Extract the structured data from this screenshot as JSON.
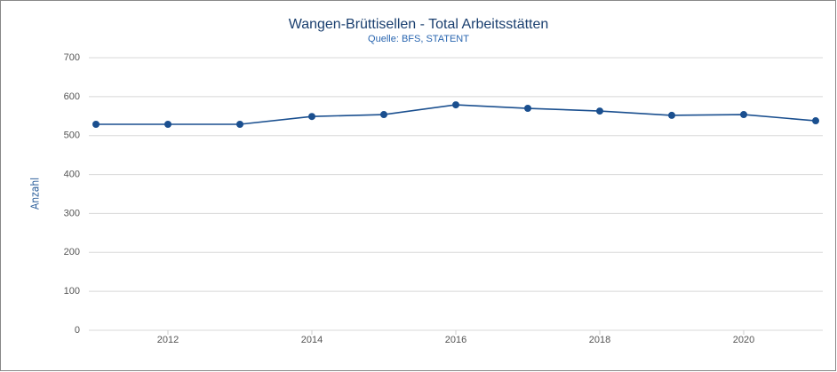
{
  "chart_data": {
    "type": "line",
    "title": "Wangen-Brüttisellen - Total Arbeitsstätten",
    "subtitle": "Quelle: BFS, STATENT",
    "y_label": "Anzahl",
    "x": [
      2011,
      2012,
      2013,
      2014,
      2015,
      2016,
      2017,
      2018,
      2019,
      2020,
      2021
    ],
    "series": [
      {
        "name": "Total Arbeitsstätten",
        "color": "#1a4f8f",
        "values": [
          529,
          529,
          529,
          549,
          554,
          579,
          570,
          563,
          552,
          554,
          538
        ]
      }
    ],
    "xlim": [
      2011,
      2021
    ],
    "xticks": [
      2012,
      2014,
      2016,
      2018,
      2020
    ],
    "ylim": [
      0,
      700
    ],
    "yticks": [
      0,
      100,
      200,
      300,
      400,
      500,
      600,
      700
    ],
    "grid": true
  }
}
